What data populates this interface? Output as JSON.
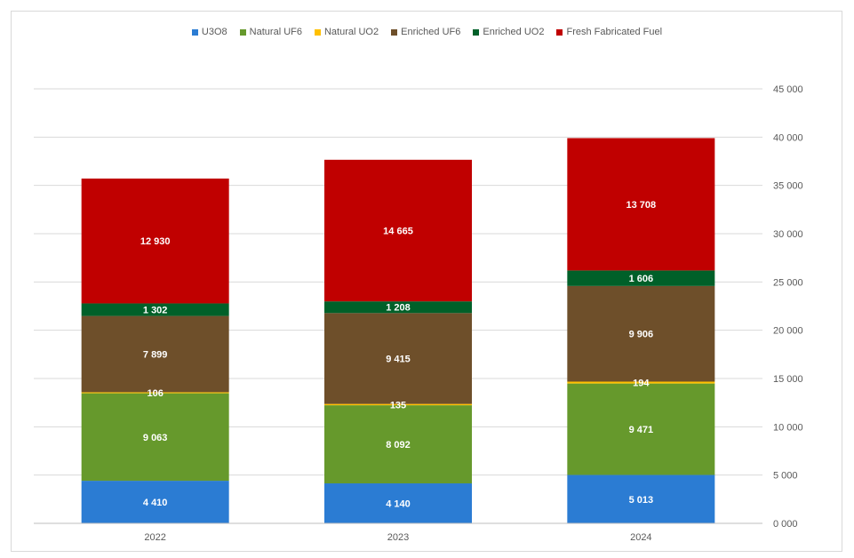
{
  "chart_data": {
    "type": "bar",
    "stacked": true,
    "categories": [
      "2022",
      "2023",
      "2024"
    ],
    "series": [
      {
        "name": "U3O8",
        "color": "#2b7cd3",
        "values": [
          4410,
          4140,
          5013
        ],
        "labels": [
          "4 410",
          "4 140",
          "5 013"
        ]
      },
      {
        "name": "Natural UF6",
        "color": "#66992c",
        "values": [
          9063,
          8092,
          9471
        ],
        "labels": [
          "9 063",
          "8 092",
          "9 471"
        ]
      },
      {
        "name": "Natural UO2",
        "color": "#ffc000",
        "values": [
          106,
          135,
          194
        ],
        "labels": [
          "106",
          "135",
          "194"
        ]
      },
      {
        "name": "Enriched UF6",
        "color": "#6e4f2a",
        "values": [
          7899,
          9415,
          9906
        ],
        "labels": [
          "7 899",
          "9 415",
          "9 906"
        ]
      },
      {
        "name": "Enriched UO2",
        "color": "#006029",
        "values": [
          1302,
          1208,
          1606
        ],
        "labels": [
          "1 302",
          "1 208",
          "1 606"
        ]
      },
      {
        "name": "Fresh Fabricated Fuel",
        "color": "#c00000",
        "values": [
          12930,
          14665,
          13708
        ],
        "labels": [
          "12 930",
          "14 665",
          "13 708"
        ]
      }
    ],
    "ylim": [
      0,
      45000
    ],
    "yticks": [
      0,
      5000,
      10000,
      15000,
      20000,
      25000,
      30000,
      35000,
      40000,
      45000
    ],
    "ytick_labels": [
      "0 000",
      "5 000",
      "10 000",
      "15 000",
      "20 000",
      "25 000",
      "30 000",
      "35 000",
      "40 000",
      "45 000"
    ],
    "grid": true,
    "legend_position": "top-center",
    "y_axis_side": "right",
    "title": "",
    "xlabel": "",
    "ylabel": ""
  }
}
